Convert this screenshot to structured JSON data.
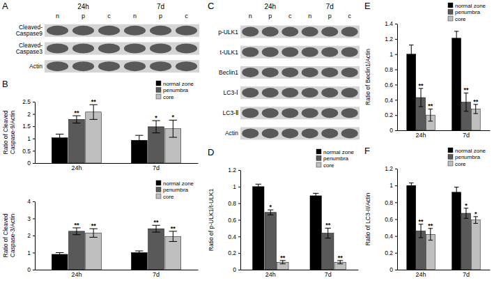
{
  "chart_data": [
    {
      "type": "bar",
      "title": "B",
      "y_label": "Ratio of Cleaved Caspase-9/Actin",
      "categories": [
        "24h",
        "7d"
      ],
      "series": [
        {
          "name": "normal zone",
          "color": "#000000",
          "values": [
            1.03,
            0.93
          ],
          "errors": [
            0.15,
            0.2
          ]
        },
        {
          "name": "penumbra",
          "color": "#595959",
          "values": [
            1.78,
            1.48
          ],
          "errors": [
            0.15,
            0.25
          ],
          "annotations": [
            "**",
            "*"
          ]
        },
        {
          "name": "core",
          "color": "#bfbfbf",
          "values": [
            2.08,
            1.4
          ],
          "errors": [
            0.3,
            0.35
          ],
          "annotations": [
            "**",
            "*"
          ]
        }
      ],
      "ylim": [
        0,
        2.5
      ],
      "yticks": [
        0,
        0.5,
        1,
        1.5,
        2,
        2.5
      ],
      "grid": false,
      "legend": "upper right"
    },
    {
      "type": "bar",
      "y_label": "Ratio of Cleaved Caspase-3/Actin",
      "categories": [
        "24h",
        "7d"
      ],
      "series": [
        {
          "name": "normal zone",
          "color": "#000000",
          "values": [
            0.9,
            1.0
          ],
          "errors": [
            0.1,
            0.1
          ]
        },
        {
          "name": "penumbra",
          "color": "#595959",
          "values": [
            2.25,
            2.4
          ],
          "errors": [
            0.2,
            0.2
          ],
          "annotations": [
            "**",
            "**"
          ]
        },
        {
          "name": "core",
          "color": "#bfbfbf",
          "values": [
            2.15,
            1.95
          ],
          "errors": [
            0.25,
            0.3
          ],
          "annotations": [
            "**",
            "**"
          ]
        }
      ],
      "ylim": [
        0,
        4
      ],
      "yticks": [
        0,
        1,
        2,
        3,
        4
      ],
      "grid": false,
      "legend": "upper right"
    },
    {
      "type": "bar",
      "title": "D",
      "y_label": "Ratio of p-ULK1/t-ULK1",
      "categories": [
        "24h",
        "7d"
      ],
      "series": [
        {
          "name": "normal zone",
          "color": "#000000",
          "values": [
            1.0,
            0.89
          ],
          "errors": [
            0.03,
            0.03
          ]
        },
        {
          "name": "penumbra",
          "color": "#595959",
          "values": [
            0.69,
            0.44
          ],
          "errors": [
            0.03,
            0.06
          ],
          "annotations": [
            "*",
            "**"
          ]
        },
        {
          "name": "core",
          "color": "#bfbfbf",
          "values": [
            0.09,
            0.09
          ],
          "errors": [
            0.02,
            0.02
          ],
          "annotations": [
            "**",
            "**"
          ]
        }
      ],
      "ylim": [
        0,
        1.2
      ],
      "yticks": [
        0,
        0.2,
        0.4,
        0.6,
        0.8,
        1,
        1.2
      ],
      "grid": false,
      "legend": "upper right"
    },
    {
      "type": "bar",
      "title": "E",
      "y_label": "Ratio of Beclin1/Actin",
      "categories": [
        "24h",
        "7d"
      ],
      "series": [
        {
          "name": "normal zone",
          "color": "#000000",
          "values": [
            1.0,
            1.21
          ],
          "errors": [
            0.12,
            0.09
          ]
        },
        {
          "name": "penumbra",
          "color": "#595959",
          "values": [
            0.43,
            0.37
          ],
          "errors": [
            0.12,
            0.12
          ],
          "annotations": [
            "**",
            "**"
          ]
        },
        {
          "name": "core",
          "color": "#bfbfbf",
          "values": [
            0.2,
            0.28
          ],
          "errors": [
            0.08,
            0.06
          ],
          "annotations": [
            "**",
            "**"
          ]
        }
      ],
      "ylim": [
        0,
        1.4
      ],
      "yticks": [
        0,
        0.2,
        0.4,
        0.6,
        0.8,
        1,
        1.2,
        1.4
      ],
      "grid": false,
      "legend": "upper right"
    },
    {
      "type": "bar",
      "title": "F",
      "y_label": "Ratio of LC3-II/Actin",
      "categories": [
        "24h",
        "7d"
      ],
      "series": [
        {
          "name": "normal zone",
          "color": "#000000",
          "values": [
            1.0,
            0.92
          ],
          "errors": [
            0.03,
            0.06
          ]
        },
        {
          "name": "penumbra",
          "color": "#595959",
          "values": [
            0.46,
            0.67
          ],
          "errors": [
            0.08,
            0.06
          ],
          "annotations": [
            "**",
            "*"
          ]
        },
        {
          "name": "core",
          "color": "#bfbfbf",
          "values": [
            0.42,
            0.59
          ],
          "errors": [
            0.07,
            0.04
          ],
          "annotations": [
            "**",
            "*"
          ]
        }
      ],
      "ylim": [
        0,
        1.2
      ],
      "yticks": [
        0,
        0.2,
        0.4,
        0.6,
        0.8,
        1,
        1.2
      ],
      "grid": false,
      "legend": "upper right"
    }
  ],
  "blots": [
    {
      "panel": "A",
      "conditions": [
        "24h",
        "7d"
      ],
      "lanes": [
        "n",
        "p",
        "c",
        "n",
        "p",
        "c"
      ],
      "rows": [
        [
          "Cleaved-",
          "Caspase9"
        ],
        [
          "Cleaved-",
          "Caspase3"
        ],
        [
          "Actin"
        ]
      ]
    },
    {
      "panel": "C",
      "conditions": [
        "24h",
        "7d"
      ],
      "lanes": [
        "n",
        "p",
        "c",
        "n",
        "p",
        "c"
      ],
      "rows": [
        [
          "p-ULK1"
        ],
        [
          "t-ULK1"
        ],
        [
          "Beclin1"
        ],
        [
          "LC3-Ⅰ"
        ],
        [
          "LC3-Ⅱ"
        ],
        [
          "Actin"
        ]
      ]
    }
  ]
}
